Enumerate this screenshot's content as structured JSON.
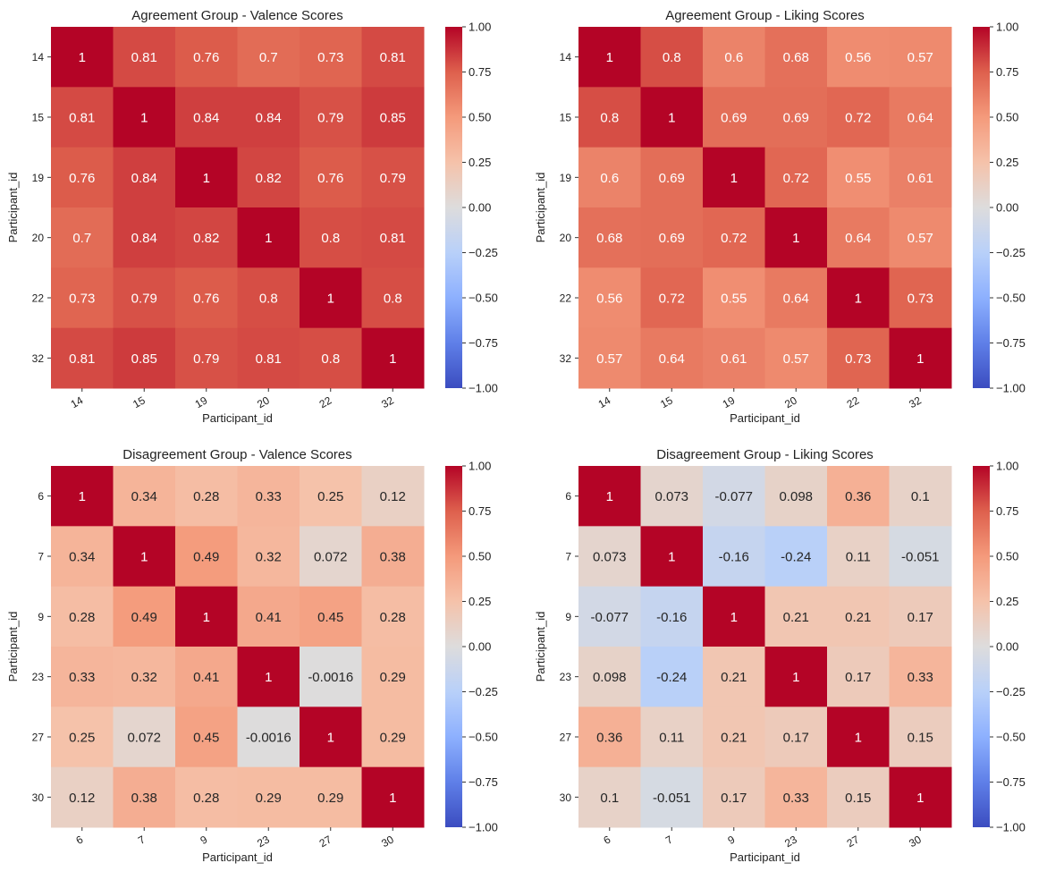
{
  "chart_data": [
    {
      "type": "heatmap",
      "title": "Agreement Group - Valence Scores",
      "xlabel": "Participant_id",
      "ylabel": "Participant_id",
      "x_categories": [
        "14",
        "15",
        "19",
        "20",
        "22",
        "32"
      ],
      "y_categories": [
        "14",
        "15",
        "19",
        "20",
        "22",
        "32"
      ],
      "values": [
        [
          1,
          0.81,
          0.76,
          0.7,
          0.73,
          0.81
        ],
        [
          0.81,
          1,
          0.84,
          0.84,
          0.79,
          0.85
        ],
        [
          0.76,
          0.84,
          1,
          0.82,
          0.76,
          0.79
        ],
        [
          0.7,
          0.84,
          0.82,
          1,
          0.8,
          0.81
        ],
        [
          0.73,
          0.79,
          0.76,
          0.8,
          1,
          0.8
        ],
        [
          0.81,
          0.85,
          0.79,
          0.81,
          0.8,
          1
        ]
      ],
      "labels": [
        [
          "1",
          "0.81",
          "0.76",
          "0.7",
          "0.73",
          "0.81"
        ],
        [
          "0.81",
          "1",
          "0.84",
          "0.84",
          "0.79",
          "0.85"
        ],
        [
          "0.76",
          "0.84",
          "1",
          "0.82",
          "0.76",
          "0.79"
        ],
        [
          "0.7",
          "0.84",
          "0.82",
          "1",
          "0.8",
          "0.81"
        ],
        [
          "0.73",
          "0.79",
          "0.76",
          "0.8",
          "1",
          "0.8"
        ],
        [
          "0.81",
          "0.85",
          "0.79",
          "0.81",
          "0.8",
          "1"
        ]
      ],
      "colormap": "coolwarm",
      "vmin": -1,
      "vmax": 1,
      "colorbar_ticks": [
        "1.00",
        "0.75",
        "0.50",
        "0.25",
        "0.00",
        "−0.25",
        "−0.50",
        "−0.75",
        "−1.00"
      ]
    },
    {
      "type": "heatmap",
      "title": "Agreement Group - Liking Scores",
      "xlabel": "Participant_id",
      "ylabel": "Participant_id",
      "x_categories": [
        "14",
        "15",
        "19",
        "20",
        "22",
        "32"
      ],
      "y_categories": [
        "14",
        "15",
        "19",
        "20",
        "22",
        "32"
      ],
      "values": [
        [
          1,
          0.8,
          0.6,
          0.68,
          0.56,
          0.57
        ],
        [
          0.8,
          1,
          0.69,
          0.69,
          0.72,
          0.64
        ],
        [
          0.6,
          0.69,
          1,
          0.72,
          0.55,
          0.61
        ],
        [
          0.68,
          0.69,
          0.72,
          1,
          0.64,
          0.57
        ],
        [
          0.56,
          0.72,
          0.55,
          0.64,
          1,
          0.73
        ],
        [
          0.57,
          0.64,
          0.61,
          0.57,
          0.73,
          1
        ]
      ],
      "labels": [
        [
          "1",
          "0.8",
          "0.6",
          "0.68",
          "0.56",
          "0.57"
        ],
        [
          "0.8",
          "1",
          "0.69",
          "0.69",
          "0.72",
          "0.64"
        ],
        [
          "0.6",
          "0.69",
          "1",
          "0.72",
          "0.55",
          "0.61"
        ],
        [
          "0.68",
          "0.69",
          "0.72",
          "1",
          "0.64",
          "0.57"
        ],
        [
          "0.56",
          "0.72",
          "0.55",
          "0.64",
          "1",
          "0.73"
        ],
        [
          "0.57",
          "0.64",
          "0.61",
          "0.57",
          "0.73",
          "1"
        ]
      ],
      "colormap": "coolwarm",
      "vmin": -1,
      "vmax": 1,
      "colorbar_ticks": [
        "1.00",
        "0.75",
        "0.50",
        "0.25",
        "0.00",
        "−0.25",
        "−0.50",
        "−0.75",
        "−1.00"
      ]
    },
    {
      "type": "heatmap",
      "title": "Disagreement Group - Valence Scores",
      "xlabel": "Participant_id",
      "ylabel": "Participant_id",
      "x_categories": [
        "6",
        "7",
        "9",
        "23",
        "27",
        "30"
      ],
      "y_categories": [
        "6",
        "7",
        "9",
        "23",
        "27",
        "30"
      ],
      "values": [
        [
          1,
          0.34,
          0.28,
          0.33,
          0.25,
          0.12
        ],
        [
          0.34,
          1,
          0.49,
          0.32,
          0.072,
          0.38
        ],
        [
          0.28,
          0.49,
          1,
          0.41,
          0.45,
          0.28
        ],
        [
          0.33,
          0.32,
          0.41,
          1,
          -0.0016,
          0.29
        ],
        [
          0.25,
          0.072,
          0.45,
          -0.0016,
          1,
          0.29
        ],
        [
          0.12,
          0.38,
          0.28,
          0.29,
          0.29,
          1
        ]
      ],
      "labels": [
        [
          "1",
          "0.34",
          "0.28",
          "0.33",
          "0.25",
          "0.12"
        ],
        [
          "0.34",
          "1",
          "0.49",
          "0.32",
          "0.072",
          "0.38"
        ],
        [
          "0.28",
          "0.49",
          "1",
          "0.41",
          "0.45",
          "0.28"
        ],
        [
          "0.33",
          "0.32",
          "0.41",
          "1",
          "-0.0016",
          "0.29"
        ],
        [
          "0.25",
          "0.072",
          "0.45",
          "-0.0016",
          "1",
          "0.29"
        ],
        [
          "0.12",
          "0.38",
          "0.28",
          "0.29",
          "0.29",
          "1"
        ]
      ],
      "colormap": "coolwarm",
      "vmin": -1,
      "vmax": 1,
      "colorbar_ticks": [
        "1.00",
        "0.75",
        "0.50",
        "0.25",
        "0.00",
        "−0.25",
        "−0.50",
        "−0.75",
        "−1.00"
      ]
    },
    {
      "type": "heatmap",
      "title": "Disagreement Group - Liking Scores",
      "xlabel": "Participant_id",
      "ylabel": "Participant_id",
      "x_categories": [
        "6",
        "7",
        "9",
        "23",
        "27",
        "30"
      ],
      "y_categories": [
        "6",
        "7",
        "9",
        "23",
        "27",
        "30"
      ],
      "values": [
        [
          1,
          0.073,
          -0.077,
          0.098,
          0.36,
          0.1
        ],
        [
          0.073,
          1,
          -0.16,
          -0.24,
          0.11,
          -0.051
        ],
        [
          -0.077,
          -0.16,
          1,
          0.21,
          0.21,
          0.17
        ],
        [
          0.098,
          -0.24,
          0.21,
          1,
          0.17,
          0.33
        ],
        [
          0.36,
          0.11,
          0.21,
          0.17,
          1,
          0.15
        ],
        [
          0.1,
          -0.051,
          0.17,
          0.33,
          0.15,
          1
        ]
      ],
      "labels": [
        [
          "1",
          "0.073",
          "-0.077",
          "0.098",
          "0.36",
          "0.1"
        ],
        [
          "0.073",
          "1",
          "-0.16",
          "-0.24",
          "0.11",
          "-0.051"
        ],
        [
          "-0.077",
          "-0.16",
          "1",
          "0.21",
          "0.21",
          "0.17"
        ],
        [
          "0.098",
          "-0.24",
          "0.21",
          "1",
          "0.17",
          "0.33"
        ],
        [
          "0.36",
          "0.11",
          "0.21",
          "0.17",
          "1",
          "0.15"
        ],
        [
          "0.1",
          "-0.051",
          "0.17",
          "0.33",
          "0.15",
          "1"
        ]
      ],
      "colormap": "coolwarm",
      "vmin": -1,
      "vmax": 1,
      "colorbar_ticks": [
        "1.00",
        "0.75",
        "0.50",
        "0.25",
        "0.00",
        "−0.25",
        "−0.50",
        "−0.75",
        "−1.00"
      ]
    }
  ]
}
